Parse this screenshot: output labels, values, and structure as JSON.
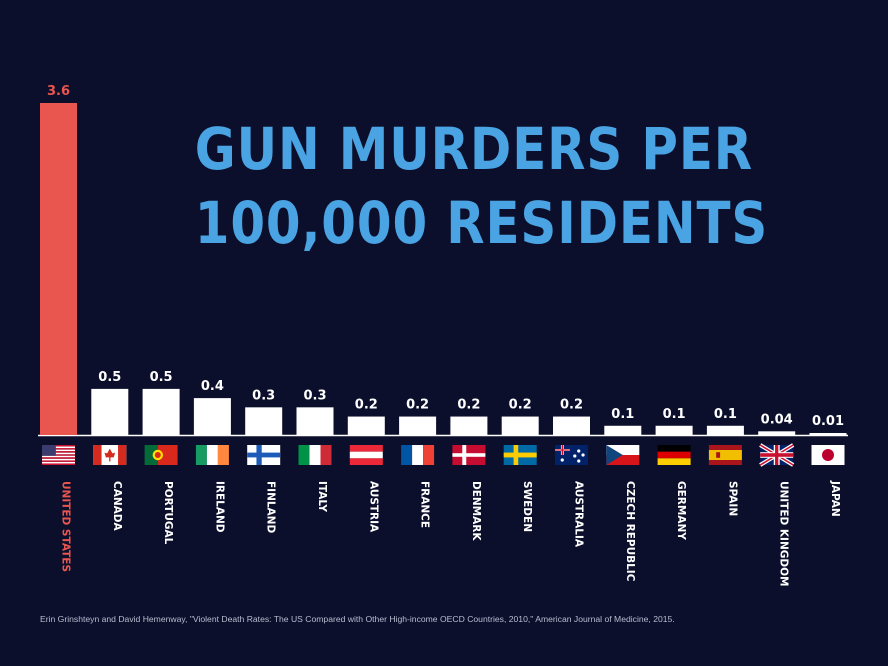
{
  "title": {
    "line1": "GUN MURDERS PER",
    "line2": "100,000 RESIDENTS"
  },
  "source": "Erin Grinshteyn and David Hemenway, \"Violent Death Rates: The US Compared with Other High-income OECD Countries, 2010,\" American Journal of Medicine, 2015.",
  "chart_data": {
    "type": "bar",
    "title": "GUN MURDERS PER 100,000 RESIDENTS",
    "xlabel": "",
    "ylabel": "",
    "ylim": [
      0,
      3.6
    ],
    "grid": false,
    "categories": [
      "UNITED STATES",
      "CANADA",
      "PORTUGAL",
      "IRELAND",
      "FINLAND",
      "ITALY",
      "AUSTRIA",
      "FRANCE",
      "DENMARK",
      "SWEDEN",
      "AUSTRALIA",
      "CZECH REPUBLIC",
      "GERMANY",
      "SPAIN",
      "UNITED KINGDOM",
      "JAPAN"
    ],
    "values": [
      3.6,
      0.5,
      0.5,
      0.4,
      0.3,
      0.3,
      0.2,
      0.2,
      0.2,
      0.2,
      0.2,
      0.1,
      0.1,
      0.1,
      0.04,
      0.01
    ],
    "value_labels": [
      "3.6",
      "0.5",
      "0.5",
      "0.4",
      "0.3",
      "0.3",
      "0.2",
      "0.2",
      "0.2",
      "0.2",
      "0.2",
      "0.1",
      "0.1",
      "0.1",
      "0.04",
      "0.01"
    ],
    "flags": [
      "us-flag",
      "ca-flag",
      "pt-flag",
      "ie-flag",
      "fi-flag",
      "it-flag",
      "at-flag",
      "fr-flag",
      "dk-flag",
      "se-flag",
      "au-flag",
      "cz-flag",
      "de-flag",
      "es-flag",
      "gb-flag",
      "jp-flag"
    ],
    "colors": {
      "highlight": "#e8564f",
      "bar": "#ffffff",
      "background": "#0c0f2c",
      "title": "#4aa3e2",
      "label": "#ffffff"
    }
  }
}
